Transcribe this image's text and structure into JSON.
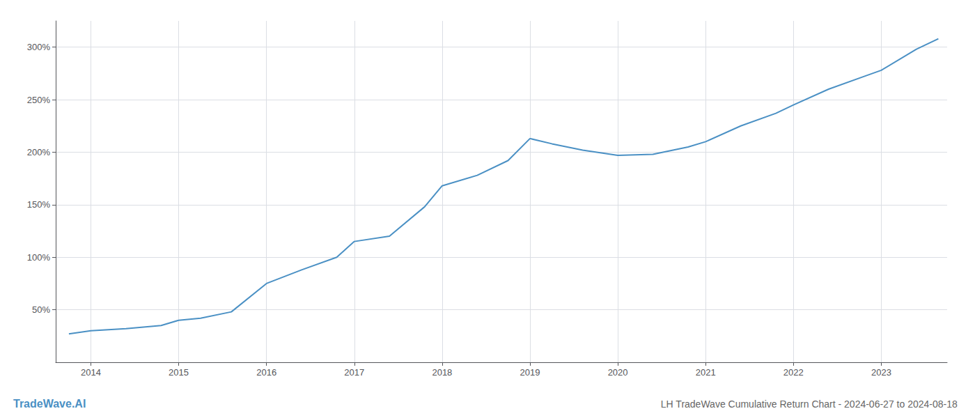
{
  "chart_data": {
    "type": "line",
    "title": "LH TradeWave Cumulative Return Chart - 2024-06-27 to 2024-08-18",
    "annotations": [
      {
        "text": "TradeWave.AI"
      }
    ],
    "x": [
      2013.75,
      2014.0,
      2014.4,
      2014.8,
      2015.0,
      2015.25,
      2015.6,
      2016.0,
      2016.4,
      2016.8,
      2017.0,
      2017.4,
      2017.8,
      2018.0,
      2018.4,
      2018.75,
      2019.0,
      2019.25,
      2019.6,
      2020.0,
      2020.4,
      2020.8,
      2021.0,
      2021.4,
      2021.8,
      2022.0,
      2022.4,
      2022.8,
      2023.0,
      2023.4,
      2023.65
    ],
    "values": [
      27,
      30,
      32,
      35,
      40,
      42,
      48,
      75,
      88,
      100,
      115,
      120,
      148,
      168,
      178,
      192,
      213,
      208,
      202,
      197,
      198,
      205,
      210,
      225,
      237,
      245,
      260,
      272,
      278,
      298,
      308
    ],
    "color": "#4a90c4",
    "xlim": [
      2013.6,
      2023.75
    ],
    "ylim": [
      0,
      325
    ],
    "xticks": [
      2014,
      2015,
      2016,
      2017,
      2018,
      2019,
      2020,
      2021,
      2022,
      2023
    ],
    "yticks": [
      {
        "value": 50,
        "label": "50%"
      },
      {
        "value": 100,
        "label": "100%"
      },
      {
        "value": 150,
        "label": "150%"
      },
      {
        "value": 200,
        "label": "200%"
      },
      {
        "value": 250,
        "label": "250%"
      },
      {
        "value": 300,
        "label": "300%"
      }
    ],
    "grid": true
  }
}
